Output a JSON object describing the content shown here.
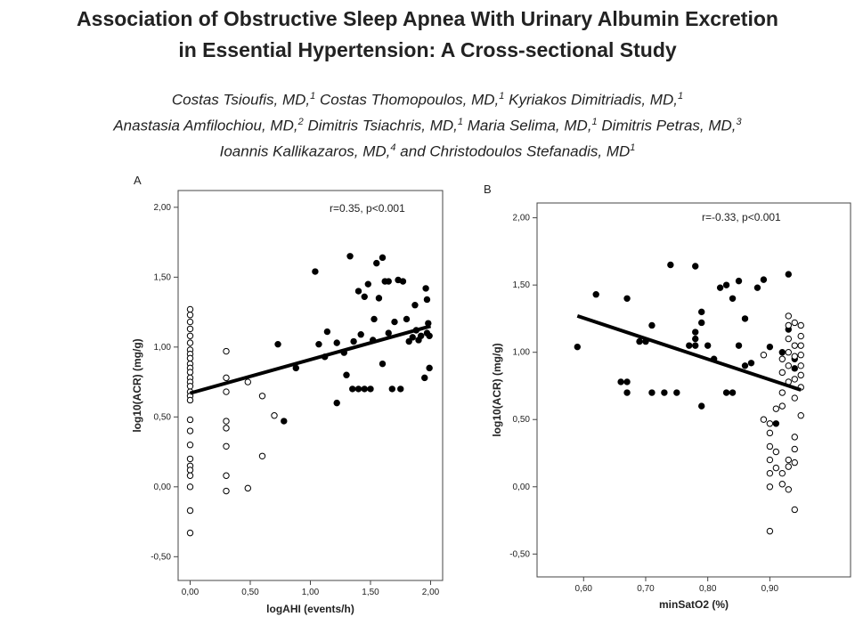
{
  "header": {
    "title": [
      "Association of Obstructive Sleep Apnea With Urinary Albumin Excretion",
      "in Essential Hypertension: A Cross-sectional Study"
    ],
    "author_lines": [
      [
        {
          "name": "Costas Tsioufis, MD,",
          "affil": "1"
        },
        {
          "name": "Costas Thomopoulos, MD,",
          "affil": "1"
        },
        {
          "name": "Kyriakos Dimitriadis, MD,",
          "affil": "1"
        }
      ],
      [
        {
          "name": "Anastasia Amfilochiou, MD,",
          "affil": "2"
        },
        {
          "name": "Dimitris Tsiachris, MD,",
          "affil": "1"
        },
        {
          "name": "Maria Selima, MD,",
          "affil": "1"
        },
        {
          "name": "Dimitris Petras, MD,",
          "affil": "3"
        }
      ],
      [
        {
          "name": "Ioannis Kallikazaros, MD,",
          "affil": "4"
        },
        {
          "name": "and Christodoulos Stefanadis, MD",
          "affil": "1"
        }
      ]
    ]
  },
  "chart_data": [
    {
      "type": "scatter",
      "panel": "A",
      "annotation": "r=0.35, p<0.001",
      "xlabel": "logAHI (events/h)",
      "ylabel": "log10(ACR) (mg/g)",
      "xlim": [
        -0.1,
        2.1
      ],
      "ylim": [
        -0.67,
        2.12
      ],
      "xticks": [
        {
          "value": 0,
          "label": "0,00"
        },
        {
          "value": 0.5,
          "label": "0,50"
        },
        {
          "value": 1,
          "label": "1,00"
        },
        {
          "value": 1.5,
          "label": "1,50"
        },
        {
          "value": 2,
          "label": "2,00"
        }
      ],
      "yticks": [
        {
          "value": -0.5,
          "label": "-0,50"
        },
        {
          "value": 0,
          "label": "0,00"
        },
        {
          "value": 0.5,
          "label": "0,50"
        },
        {
          "value": 1,
          "label": "1,00"
        },
        {
          "value": 1.5,
          "label": "1,50"
        },
        {
          "value": 2,
          "label": "2,00"
        }
      ],
      "series": [
        {
          "marker": "open",
          "color": "#000000",
          "x": [
            0,
            0,
            0,
            0,
            0,
            0,
            0,
            0,
            0,
            0,
            0,
            0,
            0,
            0,
            0,
            0,
            0,
            0,
            0,
            0,
            0,
            0,
            0,
            0,
            0,
            0,
            0,
            0,
            0.3,
            0.3,
            0.3,
            0.3,
            0.3,
            0.3,
            0.3,
            0.3,
            0.48,
            0.48,
            0.6,
            0.6,
            0.7
          ],
          "values": [
            1.27,
            1.23,
            1.18,
            1.13,
            1.08,
            1.03,
            0.98,
            0.95,
            0.92,
            0.88,
            0.85,
            0.82,
            0.78,
            0.75,
            0.72,
            0.68,
            0.65,
            0.62,
            0.48,
            0.4,
            0.3,
            0.2,
            0.15,
            0.12,
            0.08,
            0,
            -0.17,
            -0.33,
            0.97,
            0.78,
            0.68,
            0.47,
            0.42,
            0.29,
            0.08,
            -0.03,
            0.75,
            -0.01,
            0.65,
            0.22,
            0.51
          ]
        },
        {
          "marker": "filled",
          "color": "#000000",
          "x": [
            0.78,
            0.73,
            0.88,
            1.04,
            1.07,
            1.12,
            1.14,
            1.22,
            1.22,
            1.28,
            1.3,
            1.33,
            1.35,
            1.36,
            1.4,
            1.4,
            1.42,
            1.45,
            1.45,
            1.48,
            1.5,
            1.52,
            1.53,
            1.55,
            1.57,
            1.6,
            1.6,
            1.62,
            1.65,
            1.65,
            1.68,
            1.7,
            1.73,
            1.75,
            1.77,
            1.8,
            1.82,
            1.85,
            1.87,
            1.88,
            1.9,
            1.92,
            1.95,
            1.96,
            1.97,
            1.97,
            1.98,
            1.99,
            1.99
          ],
          "values": [
            0.47,
            1.02,
            0.85,
            1.54,
            1.02,
            0.93,
            1.11,
            1.03,
            0.6,
            0.96,
            0.8,
            1.65,
            0.7,
            1.04,
            1.4,
            0.7,
            1.09,
            1.36,
            0.7,
            1.45,
            0.7,
            1.05,
            1.2,
            1.6,
            1.35,
            1.64,
            0.88,
            1.47,
            1.47,
            1.1,
            0.7,
            1.18,
            1.48,
            0.7,
            1.47,
            1.2,
            1.04,
            1.07,
            1.3,
            1.12,
            1.05,
            1.08,
            0.78,
            1.42,
            1.1,
            1.34,
            1.17,
            0.85,
            1.08
          ]
        }
      ],
      "fit": {
        "x": [
          0,
          2
        ],
        "values": [
          0.67,
          1.15
        ]
      }
    },
    {
      "type": "scatter",
      "panel": "B",
      "annotation": "r=-0.33, p<0.001",
      "xlabel": "minSatO2 (%)",
      "ylabel": "log10(ACR) (mg/g)",
      "xlim": [
        0.525,
        1.03
      ],
      "ylim": [
        -0.67,
        2.11
      ],
      "xticks": [
        {
          "value": 0.6,
          "label": "0,60"
        },
        {
          "value": 0.7,
          "label": "0,70"
        },
        {
          "value": 0.8,
          "label": "0,80"
        },
        {
          "value": 0.9,
          "label": "0,90"
        }
      ],
      "yticks": [
        {
          "value": -0.5,
          "label": "-0,50"
        },
        {
          "value": 0,
          "label": "0,00"
        },
        {
          "value": 0.5,
          "label": "0,50"
        },
        {
          "value": 1,
          "label": "1,00"
        },
        {
          "value": 1.5,
          "label": "1,50"
        },
        {
          "value": 2,
          "label": "2,00"
        }
      ],
      "series": [
        {
          "marker": "filled",
          "color": "#000000",
          "x": [
            0.59,
            0.62,
            0.66,
            0.67,
            0.67,
            0.67,
            0.69,
            0.7,
            0.71,
            0.71,
            0.73,
            0.74,
            0.75,
            0.77,
            0.78,
            0.78,
            0.78,
            0.78,
            0.79,
            0.79,
            0.8,
            0.79,
            0.81,
            0.82,
            0.83,
            0.83,
            0.84,
            0.84,
            0.85,
            0.85,
            0.86,
            0.86,
            0.87,
            0.88,
            0.89,
            0.9,
            0.91,
            0.92,
            0.93,
            0.93,
            0.94,
            0.94
          ],
          "values": [
            1.04,
            1.43,
            0.78,
            0.78,
            1.4,
            0.7,
            1.08,
            1.08,
            1.2,
            0.7,
            0.7,
            1.65,
            0.7,
            1.05,
            1.64,
            1.15,
            1.1,
            1.05,
            1.3,
            1.22,
            1.05,
            0.6,
            0.95,
            1.48,
            1.5,
            0.7,
            1.4,
            0.7,
            1.53,
            1.05,
            1.25,
            0.9,
            0.92,
            1.48,
            1.54,
            1.04,
            0.47,
            1,
            1.58,
            1.17,
            0.95,
            0.88
          ]
        },
        {
          "marker": "open",
          "color": "#000000",
          "x": [
            0.89,
            0.89,
            0.9,
            0.9,
            0.9,
            0.9,
            0.9,
            0.9,
            0.9,
            0.91,
            0.91,
            0.91,
            0.92,
            0.92,
            0.92,
            0.92,
            0.92,
            0.92,
            0.93,
            0.93,
            0.93,
            0.93,
            0.93,
            0.93,
            0.93,
            0.93,
            0.93,
            0.94,
            0.94,
            0.94,
            0.94,
            0.94,
            0.94,
            0.94,
            0.94,
            0.94,
            0.95,
            0.95,
            0.95,
            0.95,
            0.95,
            0.95,
            0.95,
            0.95
          ],
          "values": [
            0.98,
            0.5,
            0.3,
            0.2,
            0.1,
            0,
            -0.33,
            0.47,
            0.4,
            0.58,
            0.26,
            0.14,
            0.95,
            0.85,
            0.7,
            0.6,
            0.1,
            0.02,
            1.27,
            1.2,
            1.1,
            1,
            0.9,
            0.78,
            0.2,
            0.15,
            -0.02,
            1.22,
            1.05,
            0.97,
            0.8,
            0.66,
            0.37,
            0.28,
            0.18,
            -0.17,
            1.2,
            1.12,
            1.05,
            0.98,
            0.9,
            0.83,
            0.53,
            0.74
          ]
        }
      ],
      "fit": {
        "x": [
          0.59,
          0.95
        ],
        "values": [
          1.27,
          0.72
        ]
      }
    }
  ]
}
